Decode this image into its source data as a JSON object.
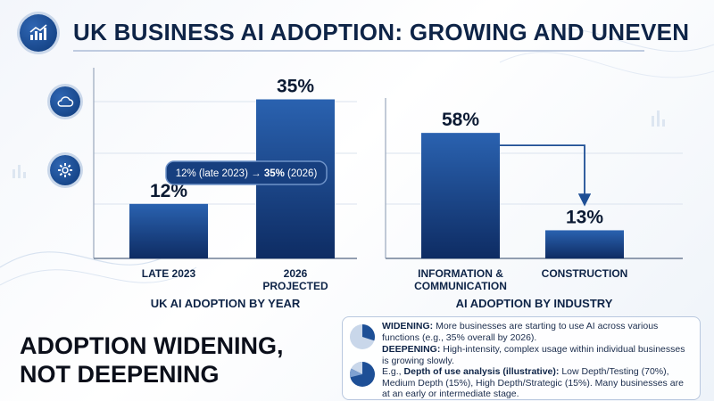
{
  "header": {
    "title": "UK BUSINESS AI ADOPTION: GROWING AND UNEVEN",
    "icon": "growth-chart-icon"
  },
  "side_icons": [
    "cloud-icon",
    "gear-icon"
  ],
  "colors": {
    "bar_top": "#2a62b0",
    "bar_bottom": "#0e2c63",
    "text_dark": "#0e2447",
    "accent": "#2f66b3"
  },
  "chart_data": [
    {
      "type": "bar",
      "title": "UK AI ADOPTION BY YEAR",
      "categories": [
        [
          "LATE 2023"
        ],
        [
          "2026",
          "PROJECTED"
        ]
      ],
      "values": [
        12,
        35
      ],
      "value_labels": [
        "12%",
        "35%"
      ],
      "unit": "%",
      "ylim": [
        0,
        40
      ],
      "grid": true,
      "annotation": {
        "prefix": "12% (late 2023) → ",
        "bold": "35%",
        "suffix": " (2026)"
      }
    },
    {
      "type": "bar",
      "title": "AI ADOPTION BY INDUSTRY",
      "categories": [
        [
          "INFORMATION &",
          "COMMUNICATION"
        ],
        [
          "CONSTRUCTION"
        ]
      ],
      "values": [
        58,
        13
      ],
      "value_labels": [
        "58%",
        "13%"
      ],
      "unit": "%",
      "ylim": [
        0,
        70
      ],
      "grid": true
    }
  ],
  "headline": {
    "line1": "ADOPTION WIDENING,",
    "line2": "NOT DEEPENING"
  },
  "info": {
    "widening_label": "WIDENING:",
    "widening_text": " More businesses are starting to use AI across various functions (e.g., 35% overall by 2026).",
    "deepening_label": "DEEPENING:",
    "deepening_text": " High-intensity, complex usage within individual businesses is growing slowly.",
    "example_prefix": "E.g., ",
    "example_label": "Depth of use analysis (illustrative):",
    "example_text": " Low Depth/Testing (70%), Medium Depth (15%), High Depth/Strategic (15%). Many businesses are at an early or intermediate stage.",
    "pie_icons": [
      "pie-chart-icon",
      "pie-chart-icon"
    ],
    "depth_values": [
      70,
      15,
      15
    ]
  }
}
